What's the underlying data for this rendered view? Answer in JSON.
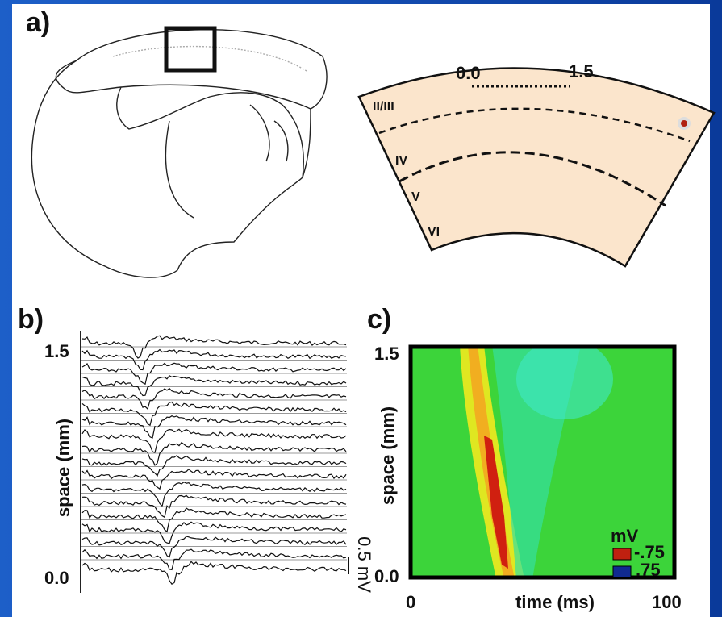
{
  "panel_a": {
    "label": "a)",
    "scale": {
      "start": "0.0",
      "end": "1.5"
    },
    "layers": [
      "II/III",
      "IV",
      "V",
      "VI"
    ]
  },
  "panel_b": {
    "label": "b)",
    "y_label": "space (mm)",
    "y_top": "1.5",
    "y_bottom": "0.0",
    "scale_bar": "0.5 mV"
  },
  "panel_c": {
    "label": "c)",
    "y_label": "space (mm)",
    "y_top": "1.5",
    "y_bottom": "0.0",
    "x_label": "time (ms)",
    "x_start": "0",
    "x_end": "100",
    "colorbar_title": "mV",
    "colorbar_max": "-.75",
    "colorbar_min": ".75"
  }
}
